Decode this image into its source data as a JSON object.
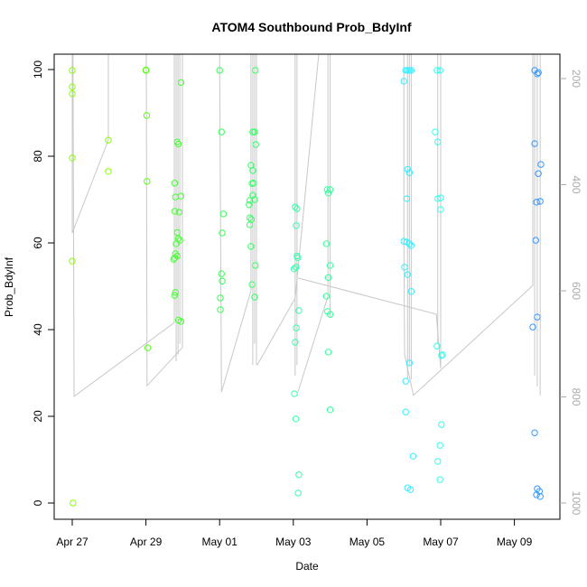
{
  "chart_data": {
    "type": "scatter",
    "title": "ATOM4 Southbound Prob_BdyInf",
    "xlabel": "Date",
    "ylabel": "Prob_BdyInf",
    "x_unit": "days since Apr 27",
    "xlim": [
      -0.5,
      13.25
    ],
    "ylim": [
      -3,
      104
    ],
    "x_ticks": [
      {
        "value": 0,
        "label": "Apr 27"
      },
      {
        "value": 2,
        "label": "Apr 29"
      },
      {
        "value": 4,
        "label": "May 01"
      },
      {
        "value": 6,
        "label": "May 03"
      },
      {
        "value": 8,
        "label": "May 05"
      },
      {
        "value": 10,
        "label": "May 07"
      },
      {
        "value": 12,
        "label": "May 09"
      }
    ],
    "y_ticks": [
      0,
      20,
      40,
      60,
      80,
      100
    ],
    "right_axis": {
      "label_color": "#aaaaaa",
      "ticks": [
        200,
        400,
        600,
        800,
        1000
      ],
      "lim_top": 154,
      "lim_bottom": 1030
    },
    "groups": [
      {
        "color": "#88ff00",
        "points": [
          [
            0,
            99.8
          ],
          [
            0,
            96
          ],
          [
            0,
            94.4
          ],
          [
            0,
            79.6
          ],
          [
            0,
            55.8
          ],
          [
            0.02,
            0
          ],
          [
            0.98,
            83.7
          ],
          [
            0.98,
            76.5
          ]
        ]
      },
      {
        "color": "#55ff11",
        "points": [
          [
            2.0,
            99.8
          ],
          [
            2.0,
            99.9
          ],
          [
            2.02,
            89.4
          ],
          [
            2.03,
            74.2
          ],
          [
            2.05,
            35.8
          ]
        ]
      },
      {
        "color": "#44ff33",
        "points": [
          [
            2.95,
            97
          ],
          [
            2.85,
            83.3
          ],
          [
            2.88,
            82.8
          ],
          [
            2.78,
            73.8
          ],
          [
            2.8,
            70.6
          ],
          [
            2.95,
            70.8
          ],
          [
            2.78,
            67.3
          ],
          [
            2.9,
            67.1
          ],
          [
            2.85,
            62.4
          ],
          [
            2.88,
            61
          ],
          [
            2.92,
            60.6
          ],
          [
            2.82,
            59.8
          ],
          [
            2.8,
            57.5
          ],
          [
            2.78,
            56.5
          ],
          [
            2.75,
            56.2
          ],
          [
            2.85,
            57
          ],
          [
            2.78,
            47.9
          ],
          [
            2.8,
            48.6
          ],
          [
            2.88,
            42.2
          ],
          [
            2.95,
            41.9
          ]
        ]
      },
      {
        "color": "#33ff55",
        "points": [
          [
            4.0,
            99.8
          ],
          [
            4.05,
            85.6
          ],
          [
            4.1,
            66.7
          ],
          [
            4.07,
            62.3
          ],
          [
            4.05,
            52.9
          ],
          [
            4.07,
            51.2
          ],
          [
            4.02,
            47.3
          ],
          [
            4.02,
            44.6
          ]
        ]
      },
      {
        "color": "#33ff66",
        "points": [
          [
            4.97,
            99.8
          ],
          [
            4.9,
            85.6
          ],
          [
            4.95,
            85.6
          ],
          [
            4.98,
            82.7
          ],
          [
            4.85,
            77.9
          ],
          [
            4.9,
            76.7
          ],
          [
            4.88,
            73.7
          ],
          [
            4.92,
            73.8
          ],
          [
            4.9,
            71
          ],
          [
            4.95,
            70
          ],
          [
            4.82,
            69.8
          ],
          [
            4.8,
            68.8
          ],
          [
            4.82,
            65.8
          ],
          [
            4.86,
            65.4
          ],
          [
            4.82,
            64.2
          ],
          [
            4.85,
            59.2
          ],
          [
            4.88,
            50.4
          ],
          [
            4.95,
            47.5
          ],
          [
            4.97,
            54.8
          ]
        ]
      },
      {
        "color": "#33ffaa",
        "points": [
          [
            6.05,
            68.3
          ],
          [
            6.1,
            67.9
          ],
          [
            6.08,
            64
          ],
          [
            6.1,
            57
          ],
          [
            6.12,
            56.6
          ],
          [
            6.02,
            54
          ],
          [
            6.07,
            54.4
          ],
          [
            6.15,
            44.4
          ],
          [
            6.08,
            40.4
          ],
          [
            6.05,
            37.1
          ],
          [
            6.03,
            25.2
          ],
          [
            6.07,
            19.4
          ],
          [
            6.15,
            6.5
          ],
          [
            6.13,
            2.3
          ]
        ]
      },
      {
        "color": "#33ff99",
        "points": [
          [
            6.92,
            72.3
          ],
          [
            7.0,
            72.3
          ],
          [
            6.95,
            71.5
          ],
          [
            6.9,
            59.8
          ],
          [
            7.0,
            54.8
          ],
          [
            6.95,
            52
          ],
          [
            6.9,
            47.7
          ],
          [
            6.93,
            44.2
          ],
          [
            7.0,
            43.5
          ],
          [
            6.95,
            34.8
          ],
          [
            7.0,
            21.5
          ]
        ]
      },
      {
        "color": "#33eeff",
        "points": [
          [
            9.05,
            99.8
          ],
          [
            9.1,
            99.8
          ],
          [
            9.15,
            99.8
          ],
          [
            9.2,
            99.8
          ],
          [
            9.0,
            97.3
          ],
          [
            9.1,
            77
          ],
          [
            9.15,
            76.2
          ],
          [
            9.08,
            70.2
          ],
          [
            9.0,
            60.4
          ],
          [
            9.08,
            60.2
          ],
          [
            9.15,
            59.8
          ],
          [
            9.2,
            59.4
          ],
          [
            9.02,
            54.4
          ],
          [
            9.1,
            52.7
          ],
          [
            9.2,
            48.8
          ],
          [
            9.15,
            32.3
          ],
          [
            9.05,
            28.1
          ],
          [
            9.05,
            21
          ],
          [
            9.25,
            10.8
          ],
          [
            9.1,
            3.5
          ],
          [
            9.18,
            3.1
          ]
        ]
      },
      {
        "color": "#33ffee",
        "points": [
          [
            9.9,
            99.8
          ],
          [
            9.98,
            99.8
          ],
          [
            9.85,
            85.6
          ],
          [
            9.92,
            83.3
          ],
          [
            9.92,
            70.2
          ],
          [
            10.0,
            70.4
          ],
          [
            10.0,
            67.7
          ],
          [
            9.9,
            36.2
          ],
          [
            10.02,
            34
          ],
          [
            10.05,
            34.2
          ],
          [
            10.02,
            18.1
          ],
          [
            9.98,
            13.3
          ],
          [
            9.92,
            9.6
          ],
          [
            9.98,
            5.4
          ]
        ]
      },
      {
        "color": "#3399ff",
        "points": [
          [
            12.55,
            99.8
          ],
          [
            12.65,
            99.3
          ],
          [
            12.62,
            99
          ],
          [
            12.55,
            82.9
          ],
          [
            12.72,
            78.1
          ],
          [
            12.65,
            76
          ],
          [
            12.6,
            69.4
          ],
          [
            12.7,
            69.6
          ],
          [
            12.58,
            60.6
          ],
          [
            12.62,
            42.9
          ],
          [
            12.5,
            40.6
          ],
          [
            12.55,
            16.2
          ],
          [
            12.62,
            3.3
          ],
          [
            12.68,
            2.7
          ],
          [
            12.6,
            1.9
          ],
          [
            12.7,
            1.5
          ]
        ]
      }
    ],
    "depth_track": {
      "color": "#c8c8c8",
      "segments": [
        [
          [
            0,
            154
          ],
          [
            0,
            491
          ],
          [
            0.98,
            316
          ],
          [
            0.98,
            154
          ]
        ],
        [
          [
            0.02,
            154
          ],
          [
            0.05,
            799
          ],
          [
            2.77,
            660
          ],
          [
            2.77,
            154
          ]
        ],
        [
          [
            2.01,
            154
          ],
          [
            2.03,
            779
          ],
          [
            2.99,
            707
          ],
          [
            2.99,
            154
          ]
        ],
        [
          [
            2.82,
            154
          ],
          [
            2.82,
            733
          ]
        ],
        [
          [
            2.87,
            154
          ],
          [
            2.87,
            720
          ]
        ],
        [
          [
            2.92,
            154
          ],
          [
            2.92,
            700
          ]
        ],
        [
          [
            4.0,
            154
          ],
          [
            4.05,
            791
          ],
          [
            4.85,
            600
          ],
          [
            4.85,
            154
          ]
        ],
        [
          [
            4.9,
            154
          ],
          [
            4.9,
            740
          ]
        ],
        [
          [
            4.95,
            154
          ],
          [
            4.95,
            700
          ]
        ],
        [
          [
            5.0,
            154
          ],
          [
            5.0,
            740
          ]
        ],
        [
          [
            5.02,
            740
          ],
          [
            6.05,
            614
          ],
          [
            6.69,
            154
          ]
        ],
        [
          [
            6.05,
            154
          ],
          [
            6.05,
            760
          ]
        ],
        [
          [
            6.1,
            154
          ],
          [
            6.1,
            740
          ]
        ],
        [
          [
            6.13,
            790
          ],
          [
            6.94,
            610
          ],
          [
            6.94,
            154
          ]
        ],
        [
          [
            7.0,
            154
          ],
          [
            7.0,
            650
          ]
        ],
        [
          [
            6.13,
            576
          ],
          [
            9.88,
            644
          ],
          [
            10.0,
            746
          ],
          [
            10.0,
            154
          ]
        ],
        [
          [
            9.92,
            154
          ],
          [
            9.92,
            700
          ]
        ],
        [
          [
            9.0,
            154
          ],
          [
            9.0,
            500
          ],
          [
            9.02,
            720
          ],
          [
            9.26,
            797
          ],
          [
            12.5,
            590
          ],
          [
            12.5,
            154
          ]
        ],
        [
          [
            9.1,
            154
          ],
          [
            9.1,
            767
          ]
        ],
        [
          [
            9.15,
            154
          ],
          [
            9.15,
            740
          ]
        ],
        [
          [
            9.2,
            154
          ],
          [
            9.2,
            767
          ]
        ],
        [
          [
            12.55,
            154
          ],
          [
            12.55,
            760
          ]
        ],
        [
          [
            12.62,
            154
          ],
          [
            12.62,
            780
          ]
        ],
        [
          [
            12.7,
            154
          ],
          [
            12.7,
            797
          ]
        ]
      ]
    }
  }
}
